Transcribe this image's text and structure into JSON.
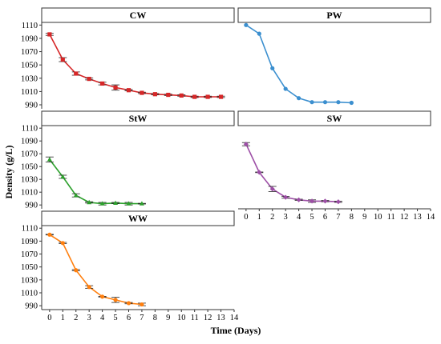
{
  "chart_data": {
    "type": "line",
    "xlabel": "Time (Days)",
    "ylabel": "Density (g/L)",
    "xlim": [
      -0.6,
      14
    ],
    "ylim": [
      984,
      1114
    ],
    "xticks": [
      0,
      1,
      2,
      3,
      4,
      5,
      6,
      7,
      8,
      9,
      10,
      11,
      12,
      13,
      14
    ],
    "yticks": [
      990,
      1010,
      1030,
      1050,
      1070,
      1090,
      1110
    ],
    "grid": false,
    "panels": [
      {
        "name": "CW",
        "color": "#d62728",
        "marker": "square",
        "x": [
          0,
          1,
          2,
          3,
          4,
          5,
          6,
          7,
          8,
          9,
          10,
          11,
          12,
          13
        ],
        "y": [
          1096,
          1058,
          1037,
          1029,
          1022,
          1016,
          1012,
          1008,
          1006,
          1005,
          1004,
          1002,
          1002,
          1002
        ],
        "err": [
          1.5,
          3,
          2.5,
          1.5,
          2,
          4,
          1,
          1,
          1,
          1,
          1,
          1,
          1,
          1
        ]
      },
      {
        "name": "PW",
        "color": "#3b8fcf",
        "marker": "circle",
        "x": [
          0,
          1,
          2,
          3,
          4,
          5,
          6,
          7,
          8
        ],
        "y": [
          1110,
          1097,
          1045,
          1014,
          1000,
          994,
          994,
          994,
          993
        ],
        "err": [
          0,
          0,
          0,
          0,
          0,
          0,
          0,
          0,
          0
        ]
      },
      {
        "name": "StW",
        "color": "#2ca02c",
        "marker": "triangle",
        "x": [
          0,
          1,
          2,
          3,
          4,
          5,
          6,
          7
        ],
        "y": [
          1061,
          1034,
          1005,
          994,
          992,
          993,
          992,
          992
        ],
        "err": [
          4,
          2.5,
          2.5,
          1,
          2,
          1,
          2,
          0.5
        ]
      },
      {
        "name": "SW",
        "color": "#9d4fa6",
        "marker": "diamond",
        "x": [
          0,
          1,
          2,
          3,
          4,
          5,
          6,
          7
        ],
        "y": [
          1085,
          1041,
          1015,
          1002,
          998,
          996,
          996,
          995
        ],
        "err": [
          2.5,
          0.5,
          4,
          1.5,
          1,
          2,
          1,
          1
        ]
      },
      {
        "name": "WW",
        "color": "#ff7f0e",
        "marker": "circle",
        "x": [
          0,
          1,
          2,
          3,
          4,
          5,
          6,
          7
        ],
        "y": [
          1100,
          1087,
          1045,
          1019,
          1004,
          999,
          994,
          992
        ],
        "err": [
          0.5,
          1,
          1,
          2,
          0.5,
          4,
          1,
          2
        ]
      }
    ]
  }
}
